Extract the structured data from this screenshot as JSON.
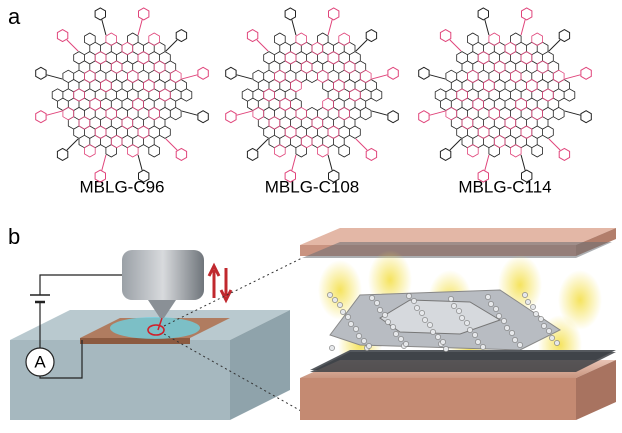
{
  "panel_a": {
    "label": "a",
    "molecules": [
      {
        "name": "MBLG-C96"
      },
      {
        "name": "MBLG-C108"
      },
      {
        "name": "MBLG-C114"
      }
    ]
  },
  "panel_b": {
    "label": "b",
    "ammeter": "A"
  }
}
